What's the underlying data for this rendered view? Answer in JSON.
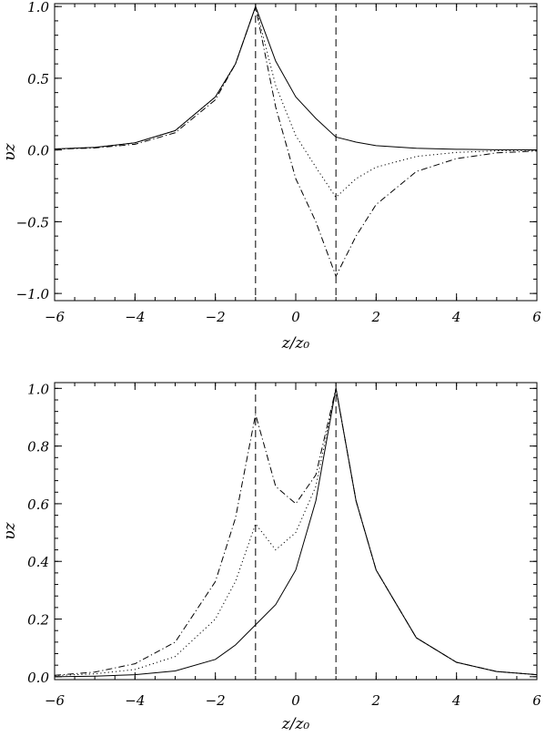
{
  "chart_data": [
    {
      "type": "line",
      "title": "",
      "xlabel": "z/z₀",
      "ylabel": "υz",
      "xlim": [
        -6,
        6
      ],
      "ylim": [
        -1.05,
        1.02
      ],
      "xticks": [
        "−6",
        "−4",
        "−2",
        "0",
        "2",
        "4",
        "6"
      ],
      "yticks": [
        "−1.0",
        "−0.5",
        "0.0",
        "0.5",
        "1.0"
      ],
      "vlines": [
        -1,
        1
      ],
      "grid": false,
      "series": [
        {
          "style": "solid",
          "x": [
            -6,
            -5,
            -4,
            -3,
            -2,
            -1.5,
            -1,
            -0.5,
            0,
            0.5,
            1,
            1.5,
            2,
            3,
            4,
            5,
            6
          ],
          "y": [
            0.007,
            0.018,
            0.05,
            0.135,
            0.37,
            0.6,
            1.0,
            0.62,
            0.37,
            0.22,
            0.09,
            0.055,
            0.03,
            0.012,
            0.005,
            0.002,
            0.001
          ]
        },
        {
          "style": "dotted",
          "x": [
            -6,
            -5,
            -4,
            -3,
            -2,
            -1.5,
            -1,
            -0.5,
            0,
            0.5,
            1,
            1.5,
            2,
            3,
            4,
            5,
            6
          ],
          "y": [
            0.007,
            0.018,
            0.05,
            0.135,
            0.37,
            0.6,
            1.0,
            0.45,
            0.1,
            -0.12,
            -0.33,
            -0.2,
            -0.12,
            -0.045,
            -0.017,
            -0.006,
            -0.002
          ]
        },
        {
          "style": "dashdot",
          "x": [
            -6,
            -5,
            -4,
            -3,
            -2,
            -1.5,
            -1,
            -0.5,
            0,
            0.5,
            1,
            1.5,
            2,
            3,
            4,
            5,
            6
          ],
          "y": [
            0.005,
            0.014,
            0.04,
            0.12,
            0.35,
            0.6,
            1.0,
            0.3,
            -0.2,
            -0.5,
            -0.88,
            -0.6,
            -0.38,
            -0.15,
            -0.06,
            -0.02,
            -0.007
          ]
        }
      ]
    },
    {
      "type": "line",
      "title": "",
      "xlabel": "z/z₀",
      "ylabel": "υz",
      "xlim": [
        -6,
        6
      ],
      "ylim": [
        -0.01,
        1.02
      ],
      "xticks": [
        "−6",
        "−4",
        "−2",
        "0",
        "2",
        "4",
        "6"
      ],
      "yticks": [
        "0.0",
        "0.2",
        "0.4",
        "0.6",
        "0.8",
        "1.0"
      ],
      "vlines": [
        -1,
        1
      ],
      "grid": false,
      "series": [
        {
          "style": "solid",
          "x": [
            -6,
            -5,
            -4,
            -3,
            -2,
            -1.5,
            -1,
            -0.5,
            0,
            0.5,
            1,
            1.5,
            2,
            3,
            4,
            5,
            6
          ],
          "y": [
            0.0,
            0.002,
            0.007,
            0.02,
            0.06,
            0.11,
            0.18,
            0.25,
            0.37,
            0.61,
            1.0,
            0.61,
            0.37,
            0.135,
            0.05,
            0.018,
            0.007
          ]
        },
        {
          "style": "dotted",
          "x": [
            -6,
            -5,
            -4,
            -3,
            -2,
            -1.5,
            -1,
            -0.5,
            0,
            0.5,
            1,
            1.5,
            2,
            3,
            4,
            5,
            6
          ],
          "y": [
            0.004,
            0.01,
            0.025,
            0.07,
            0.2,
            0.33,
            0.53,
            0.44,
            0.5,
            0.66,
            1.0,
            0.61,
            0.37,
            0.135,
            0.05,
            0.018,
            0.007
          ]
        },
        {
          "style": "dashdot",
          "x": [
            -6,
            -5,
            -4,
            -3,
            -2,
            -1.5,
            -1,
            -0.5,
            0,
            0.5,
            1,
            1.5,
            2,
            3,
            4,
            5,
            6
          ],
          "y": [
            0.005,
            0.016,
            0.045,
            0.12,
            0.33,
            0.55,
            0.91,
            0.66,
            0.6,
            0.7,
            1.0,
            0.61,
            0.37,
            0.135,
            0.05,
            0.018,
            0.007
          ]
        }
      ]
    }
  ]
}
